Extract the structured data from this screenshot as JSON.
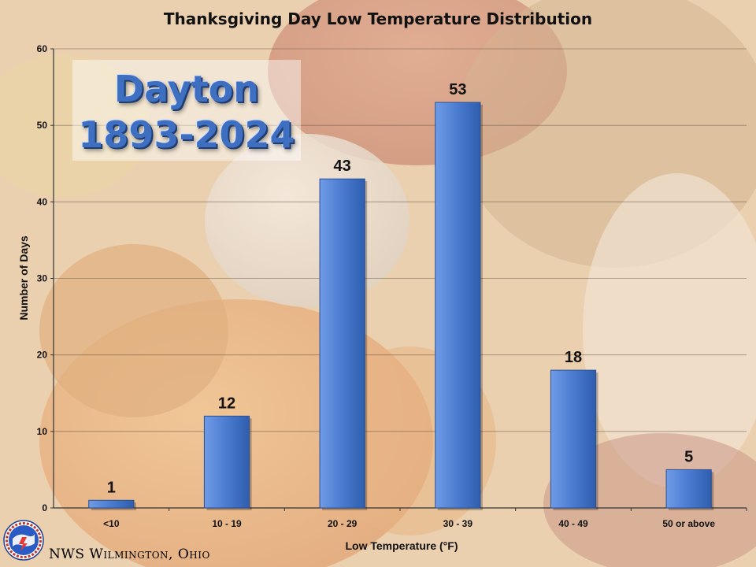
{
  "footer": {
    "office": "NWS Wilmington, Ohio"
  },
  "overlay": {
    "station": "Dayton",
    "period": "1893-2024"
  },
  "chart_data": {
    "type": "bar",
    "title": "Thanksgiving Day Low Temperature Distribution",
    "xlabel": "Low Temperature (°F)",
    "ylabel": "Number of Days",
    "categories": [
      "<10",
      "10 - 19",
      "20 - 29",
      "30 - 39",
      "40 - 49",
      "50 or above"
    ],
    "values": [
      1,
      12,
      43,
      53,
      18,
      5
    ],
    "ylim": [
      0,
      60
    ],
    "yticks": [
      0,
      10,
      20,
      30,
      40,
      50,
      60
    ],
    "grid": true,
    "bar_color": "#4a7bd0",
    "data_labels": true
  }
}
